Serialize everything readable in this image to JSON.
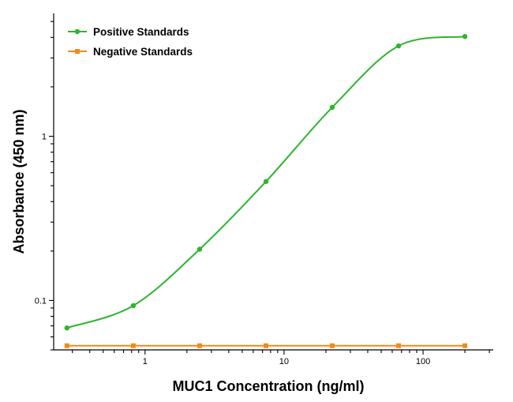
{
  "chart_data": {
    "type": "scatter",
    "xlabel": "MUC1 Concentration (ng/ml)",
    "ylabel": "Absorbance (450 nm)",
    "x_scale": "log",
    "y_scale": "log",
    "xlim": [
      0.22,
      320
    ],
    "ylim": [
      0.05,
      5.6
    ],
    "x_ticks": [
      1,
      10,
      100
    ],
    "x_tick_labels": [
      "1",
      "10",
      "100"
    ],
    "y_ticks": [
      0.1,
      1
    ],
    "y_tick_labels": [
      "0.1",
      "1"
    ],
    "grid": false,
    "legend_position": "top-left",
    "series": [
      {
        "name": "Positive Standards",
        "color": "#2db52d",
        "marker": "circle",
        "fit_curve": true,
        "x": [
          0.274,
          0.823,
          2.47,
          7.41,
          22.2,
          66.7,
          200
        ],
        "y": [
          0.068,
          0.093,
          0.205,
          0.53,
          1.5,
          3.55,
          4.05
        ]
      },
      {
        "name": "Negative Standards",
        "color": "#f08a1c",
        "marker": "square",
        "fit_curve": false,
        "x": [
          0.274,
          0.823,
          2.47,
          7.41,
          22.2,
          66.7,
          200
        ],
        "y": [
          0.053,
          0.053,
          0.053,
          0.053,
          0.053,
          0.053,
          0.053
        ]
      }
    ]
  }
}
